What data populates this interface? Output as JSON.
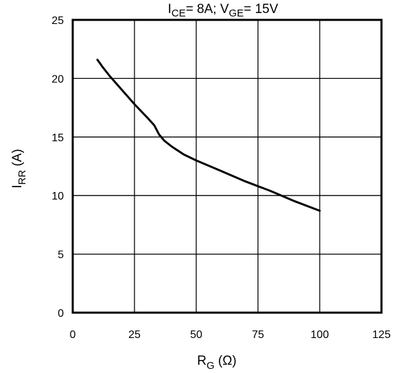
{
  "chart_data": {
    "type": "line",
    "title": {
      "part1_main": "I",
      "part1_sub": "CE",
      "part1_rest": "= 8A; V",
      "part2_sub": "GE",
      "part2_rest": "= 15V"
    },
    "xlabel": {
      "main": "R",
      "sub": "G",
      "rest": " (Ω)"
    },
    "ylabel": {
      "main": "I",
      "sub": "RR",
      "rest": " (A)"
    },
    "xlim": [
      0,
      125
    ],
    "ylim": [
      0,
      25
    ],
    "xticks": [
      0,
      25,
      50,
      75,
      100,
      125
    ],
    "yticks": [
      0,
      5,
      10,
      15,
      20,
      25
    ],
    "xtick_labels": [
      "0",
      "25",
      "50",
      "75",
      "100",
      "125"
    ],
    "ytick_labels": [
      "0",
      "5",
      "10",
      "15",
      "20",
      "25"
    ],
    "grid": true,
    "series": [
      {
        "x": [
          10,
          12,
          15,
          20,
          25,
          30,
          33,
          35,
          37,
          40,
          45,
          50,
          60,
          70,
          80,
          90,
          100
        ],
        "y": [
          21.6,
          21.0,
          20.2,
          19.0,
          17.8,
          16.7,
          16.0,
          15.2,
          14.7,
          14.2,
          13.5,
          13.0,
          12.1,
          11.2,
          10.4,
          9.5,
          8.7
        ]
      }
    ],
    "colors": {
      "line": "#000000",
      "grid": "#000000",
      "frame": "#000000"
    }
  }
}
